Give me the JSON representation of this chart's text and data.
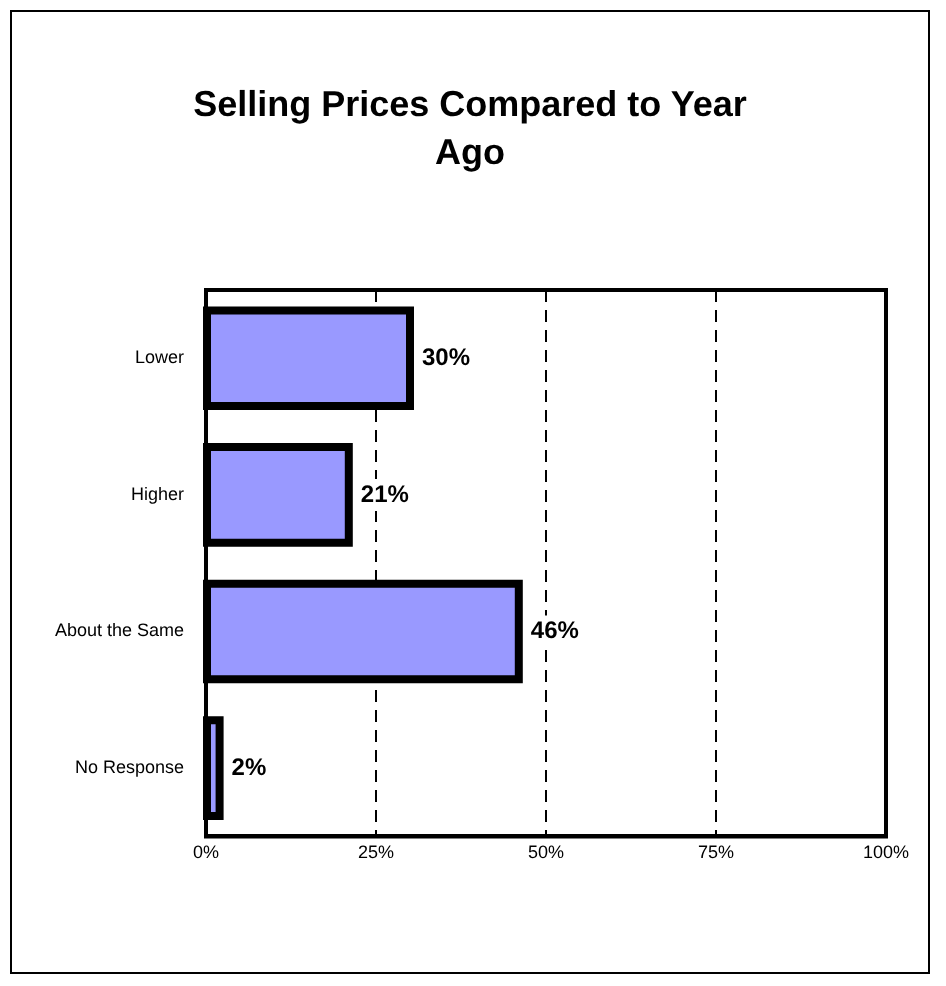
{
  "chart_data": {
    "type": "bar",
    "orientation": "horizontal",
    "title": "Selling Prices Compared to Year Ago",
    "categories": [
      "Lower",
      "Higher",
      "About the Same",
      "No Response"
    ],
    "values": [
      30,
      21,
      46,
      2
    ],
    "value_labels": [
      "30%",
      "21%",
      "46%",
      "2%"
    ],
    "color": "#9999ff",
    "xlim": [
      0,
      100
    ],
    "xticks": [
      {
        "value": 0,
        "label": "0%"
      },
      {
        "value": 25,
        "label": "25%"
      },
      {
        "value": 50,
        "label": "50%"
      },
      {
        "value": 75,
        "label": "75%"
      },
      {
        "value": 100,
        "label": "100%"
      }
    ],
    "grid": "x",
    "legend": false
  }
}
